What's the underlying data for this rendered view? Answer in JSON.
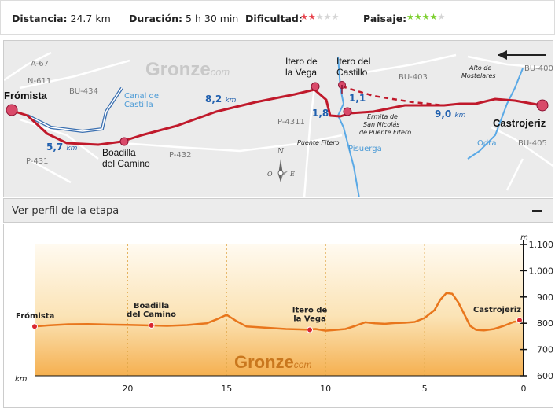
{
  "stats": {
    "distance_label": "Distancia:",
    "distance_value": "24.7 km",
    "duration_label": "Duración:",
    "duration_value": "5 h 30 min",
    "difficulty_label": "Dificultad:",
    "difficulty_rating": 2,
    "difficulty_max": 5,
    "difficulty_color": "#e8404a",
    "landscape_label": "Paisaje:",
    "landscape_rating": 4,
    "landscape_max": 5,
    "landscape_color": "#7ccf2e"
  },
  "map": {
    "brand_main": "Gronze",
    "brand_suffix": "com",
    "towns": {
      "fromista": "Frómista",
      "boadilla_1": "Boadilla",
      "boadilla_2": "del Camino",
      "itero_vega_1": "Itero de",
      "itero_vega_2": "la Vega",
      "itero_castillo_1": "Itero del",
      "itero_castillo_2": "Castillo",
      "castrojeriz": "Castrojeriz"
    },
    "roads": {
      "a67": "A-67",
      "n611": "N-611",
      "bu434": "BU-434",
      "p431": "P-431",
      "p432": "P-432",
      "p4311": "P-4311",
      "bu403": "BU-403",
      "bu400": "BU-400",
      "bu405": "BU-405"
    },
    "water": {
      "canal_1": "Canal de",
      "canal_2": "Castilla",
      "pisuerga": "Pisuerga",
      "odra": "Odra"
    },
    "distances": {
      "d1_value": "5,7",
      "d1_unit": "km",
      "d2_value": "8,2",
      "d2_unit": "km",
      "d3_value": "1,8",
      "d4_value": "1,1",
      "d5_value": "9,0",
      "d5_unit": "km"
    },
    "places": {
      "puente_fitero": "Puente Fitero",
      "ermita_1": "Ermita de",
      "ermita_2": "San Nicolás",
      "ermita_3": "de Puente Fitero",
      "alto_1": "Alto de",
      "alto_2": "Mostelares"
    },
    "compass": {
      "n": "N",
      "e": "E",
      "o": "O"
    },
    "route_color": "#c0192b"
  },
  "profile_panel": {
    "toggle_label": "Ver perfil de la etapa",
    "collapse_symbol": "−"
  },
  "chart_data": {
    "type": "area",
    "title": "",
    "xlabel": "km",
    "ylabel": "m",
    "x_ticks": [
      "20",
      "15",
      "10",
      "5",
      "0"
    ],
    "y_ticks": [
      "1.100",
      "1.000",
      "900",
      "800",
      "700",
      "600"
    ],
    "xlim": [
      24.7,
      0
    ],
    "ylim": [
      600,
      1100
    ],
    "x": [
      24.7,
      24.0,
      23.0,
      22.0,
      21.0,
      20.0,
      19.0,
      18.0,
      17.0,
      16.0,
      15.5,
      15.0,
      14.5,
      14.0,
      13.0,
      12.0,
      11.0,
      10.5,
      10.0,
      9.5,
      9.0,
      8.5,
      8.0,
      7.5,
      7.0,
      6.5,
      6.0,
      5.5,
      5.0,
      4.5,
      4.2,
      3.9,
      3.6,
      3.3,
      3.0,
      2.7,
      2.4,
      2.0,
      1.5,
      1.0,
      0.5,
      0.0
    ],
    "values": [
      788,
      792,
      796,
      797,
      795,
      794,
      792,
      790,
      793,
      800,
      815,
      832,
      808,
      788,
      783,
      778,
      776,
      778,
      772,
      775,
      778,
      790,
      804,
      800,
      798,
      801,
      802,
      805,
      820,
      850,
      890,
      915,
      912,
      880,
      835,
      790,
      775,
      773,
      778,
      790,
      805,
      812
    ],
    "annotations": [
      {
        "x": 24.7,
        "y": 788,
        "label": "Frómista"
      },
      {
        "x": 18.8,
        "y": 792,
        "label_1": "Boadilla",
        "label_2": "del Camino"
      },
      {
        "x": 10.8,
        "y": 775,
        "label_1": "Itero de",
        "label_2": "la Vega"
      },
      {
        "x": 0.2,
        "y": 812,
        "label": "Castrojeriz"
      }
    ],
    "line_color": "#e8761c",
    "grid": true
  },
  "profile_brand": {
    "main": "Gronze",
    "suffix": "com"
  }
}
